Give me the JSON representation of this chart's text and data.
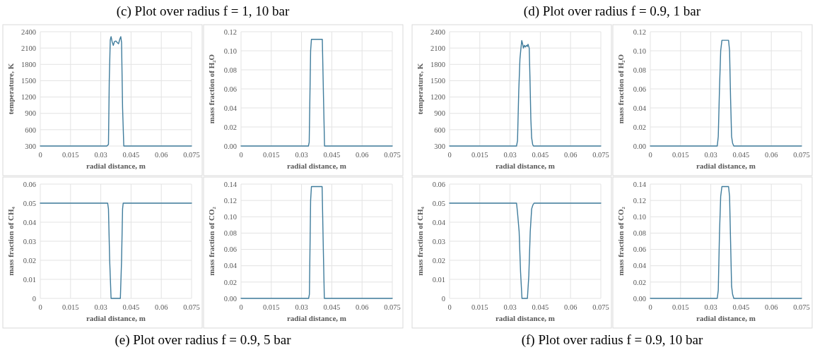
{
  "chart_data": [
    {
      "type": "line",
      "title": "(c) Plot over radius f = 1, 10 bar",
      "xlabel": "radial distance, m",
      "ylabel": "temperature, K",
      "color": "#3f7c9c",
      "grid": true,
      "xlim": [
        0,
        0.075
      ],
      "xticks": [
        0,
        0.015,
        0.03,
        0.045,
        0.06,
        0.075
      ],
      "ylim": [
        300,
        2400
      ],
      "yticks": [
        300,
        600,
        900,
        1200,
        1500,
        1800,
        2100,
        2400
      ],
      "x": [
        0,
        0.033,
        0.0338,
        0.0342,
        0.0347,
        0.0351,
        0.0356,
        0.0362,
        0.0368,
        0.0375,
        0.0382,
        0.0388,
        0.0394,
        0.0399,
        0.0403,
        0.0408,
        0.0414,
        0.075
      ],
      "values": [
        300,
        300,
        330,
        1500,
        2250,
        2310,
        2220,
        2150,
        2220,
        2230,
        2200,
        2180,
        2260,
        2310,
        2200,
        1000,
        300,
        300
      ]
    },
    {
      "type": "line",
      "xlabel": "radial distance, m",
      "ylabel": "mass fraction of H₂O",
      "color": "#3f7c9c",
      "grid": true,
      "xlim": [
        0,
        0.075
      ],
      "xticks": [
        0,
        0.015,
        0.03,
        0.045,
        0.06,
        0.075
      ],
      "ylim": [
        0,
        0.12
      ],
      "yticks": [
        {
          "value": 0,
          "label": "0.00"
        },
        {
          "value": 0.02,
          "label": "0.02"
        },
        {
          "value": 0.04,
          "label": "0.04"
        },
        {
          "value": 0.06,
          "label": "0.06"
        },
        {
          "value": 0.08,
          "label": "0.08"
        },
        {
          "value": 0.1,
          "label": "0.10"
        },
        {
          "value": 0.12,
          "label": "0.12"
        }
      ],
      "x": [
        0,
        0.0334,
        0.0338,
        0.0345,
        0.0349,
        0.0403,
        0.0409,
        0.0414,
        0.075
      ],
      "values": [
        0,
        0,
        0.004,
        0.1,
        0.112,
        0.112,
        0.05,
        0,
        0
      ]
    },
    {
      "type": "line",
      "title": "(d) Plot over radius f = 0.9, 1 bar",
      "xlabel": "radial distance, m",
      "ylabel": "temperature, K",
      "color": "#3f7c9c",
      "grid": true,
      "xlim": [
        0,
        0.075
      ],
      "xticks": [
        0,
        0.015,
        0.03,
        0.045,
        0.06,
        0.075
      ],
      "ylim": [
        300,
        2400
      ],
      "yticks": [
        300,
        600,
        900,
        1200,
        1500,
        1800,
        2100,
        2400
      ],
      "x": [
        0,
        0.0332,
        0.0337,
        0.0343,
        0.0349,
        0.0354,
        0.0358,
        0.0362,
        0.0366,
        0.0371,
        0.0376,
        0.0381,
        0.0386,
        0.0389,
        0.0395,
        0.0399,
        0.0403,
        0.0407,
        0.0412,
        0.0416,
        0.075
      ],
      "values": [
        300,
        300,
        400,
        1300,
        1900,
        2100,
        2240,
        2180,
        2100,
        2150,
        2120,
        2150,
        2130,
        2170,
        2100,
        1500,
        800,
        450,
        330,
        300,
        300
      ]
    },
    {
      "type": "line",
      "xlabel": "radial distance, m",
      "ylabel": "mass fraction of H₂O",
      "color": "#3f7c9c",
      "grid": true,
      "xlim": [
        0,
        0.075
      ],
      "xticks": [
        0,
        0.015,
        0.03,
        0.045,
        0.06,
        0.075
      ],
      "ylim": [
        0,
        0.12
      ],
      "yticks": [
        {
          "value": 0,
          "label": "0.00"
        },
        {
          "value": 0.02,
          "label": "0.02"
        },
        {
          "value": 0.04,
          "label": "0.04"
        },
        {
          "value": 0.06,
          "label": "0.06"
        },
        {
          "value": 0.08,
          "label": "0.08"
        },
        {
          "value": 0.1,
          "label": "0.10"
        },
        {
          "value": 0.12,
          "label": "0.12"
        }
      ],
      "x": [
        0,
        0.0332,
        0.0337,
        0.0343,
        0.0349,
        0.0355,
        0.0388,
        0.0393,
        0.0398,
        0.0403,
        0.0408,
        0.0414,
        0.075
      ],
      "values": [
        0,
        0,
        0.01,
        0.06,
        0.1,
        0.111,
        0.111,
        0.1,
        0.05,
        0.01,
        0.003,
        0,
        0
      ]
    },
    {
      "type": "line",
      "title": "(e) Plot over radius f = 0.9, 5 bar",
      "xlabel": "radial distance, m",
      "ylabel": "mass fraction of CH₄",
      "color": "#3f7c9c",
      "grid": true,
      "xlim": [
        0,
        0.075
      ],
      "xticks": [
        0,
        0.015,
        0.03,
        0.045,
        0.06,
        0.075
      ],
      "ylim": [
        0,
        0.06
      ],
      "yticks": [
        0,
        0.01,
        0.02,
        0.03,
        0.04,
        0.05,
        0.06
      ],
      "x": [
        0,
        0.0334,
        0.0338,
        0.0344,
        0.0351,
        0.0397,
        0.0403,
        0.0408,
        0.0411,
        0.075
      ],
      "values": [
        0.05,
        0.05,
        0.047,
        0.02,
        0,
        0,
        0.02,
        0.047,
        0.05,
        0.05
      ]
    },
    {
      "type": "line",
      "xlabel": "radial distance, m",
      "ylabel": "mass fraction of CO₂",
      "color": "#3f7c9c",
      "grid": true,
      "xlim": [
        0,
        0.075
      ],
      "xticks": [
        0,
        0.015,
        0.03,
        0.045,
        0.06,
        0.075
      ],
      "ylim": [
        0,
        0.14
      ],
      "yticks": [
        {
          "value": 0,
          "label": "0.00"
        },
        {
          "value": 0.02,
          "label": "0.02"
        },
        {
          "value": 0.04,
          "label": "0.04"
        },
        {
          "value": 0.06,
          "label": "0.06"
        },
        {
          "value": 0.08,
          "label": "0.08"
        },
        {
          "value": 0.1,
          "label": "0.10"
        },
        {
          "value": 0.12,
          "label": "0.12"
        },
        {
          "value": 0.14,
          "label": "0.14"
        }
      ],
      "x": [
        0,
        0.0335,
        0.0339,
        0.0345,
        0.0349,
        0.0402,
        0.0408,
        0.0413,
        0.075
      ],
      "values": [
        0,
        0,
        0.005,
        0.12,
        0.137,
        0.137,
        0.06,
        0,
        0
      ]
    },
    {
      "type": "line",
      "title": "(f) Plot over radius f = 0.9, 10 bar",
      "xlabel": "radial distance, m",
      "ylabel": "mass fraction of CH₄",
      "color": "#3f7c9c",
      "grid": true,
      "xlim": [
        0,
        0.075
      ],
      "xticks": [
        0,
        0.015,
        0.03,
        0.045,
        0.06,
        0.075
      ],
      "ylim": [
        0,
        0.06
      ],
      "yticks": [
        0,
        0.01,
        0.02,
        0.03,
        0.04,
        0.05,
        0.06
      ],
      "x": [
        0,
        0.0332,
        0.0337,
        0.0345,
        0.0352,
        0.0359,
        0.0386,
        0.0393,
        0.04,
        0.0407,
        0.0413,
        0.0419,
        0.075
      ],
      "values": [
        0.05,
        0.05,
        0.045,
        0.035,
        0.014,
        0,
        0,
        0.012,
        0.035,
        0.047,
        0.049,
        0.05,
        0.05
      ]
    },
    {
      "type": "line",
      "xlabel": "radial distance, m",
      "ylabel": "mass fraction of CO₂",
      "color": "#3f7c9c",
      "grid": true,
      "xlim": [
        0,
        0.075
      ],
      "xticks": [
        0,
        0.015,
        0.03,
        0.045,
        0.06,
        0.075
      ],
      "ylim": [
        0,
        0.14
      ],
      "yticks": [
        {
          "value": 0,
          "label": "0.00"
        },
        {
          "value": 0.02,
          "label": "0.02"
        },
        {
          "value": 0.04,
          "label": "0.04"
        },
        {
          "value": 0.06,
          "label": "0.06"
        },
        {
          "value": 0.08,
          "label": "0.08"
        },
        {
          "value": 0.1,
          "label": "0.10"
        },
        {
          "value": 0.12,
          "label": "0.12"
        },
        {
          "value": 0.14,
          "label": "0.14"
        }
      ],
      "x": [
        0,
        0.0332,
        0.0337,
        0.0343,
        0.0349,
        0.0355,
        0.0388,
        0.0393,
        0.0398,
        0.0403,
        0.0408,
        0.0414,
        0.075
      ],
      "values": [
        0,
        0,
        0.01,
        0.08,
        0.125,
        0.137,
        0.137,
        0.125,
        0.07,
        0.015,
        0.005,
        0,
        0
      ]
    }
  ]
}
